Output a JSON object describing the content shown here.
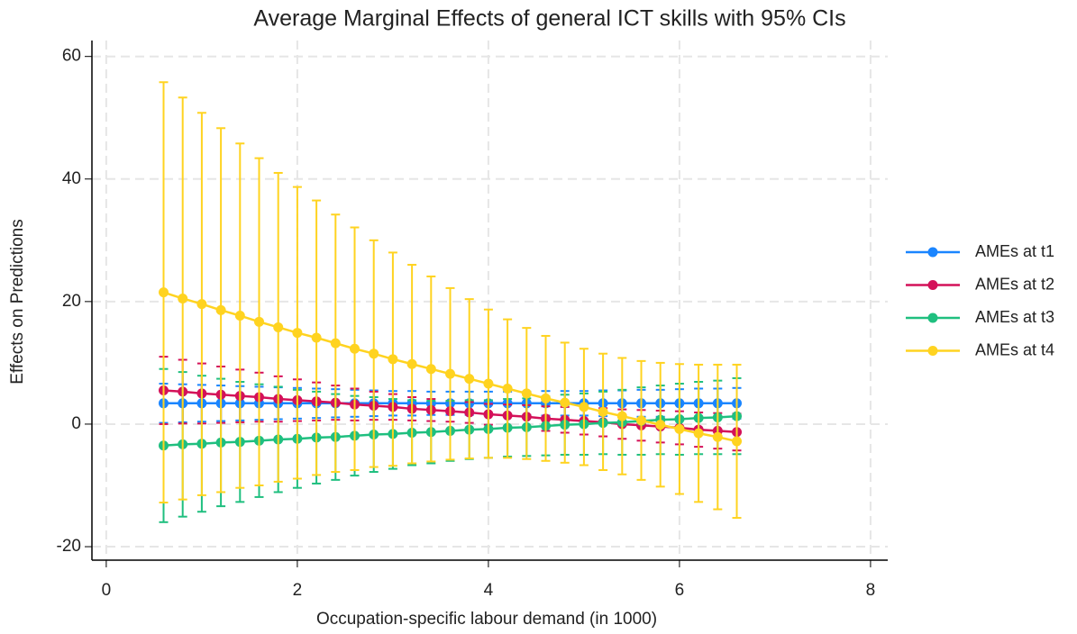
{
  "chart_data": {
    "type": "line",
    "title": "Average Marginal Effects of general ICT skills with 95% CIs",
    "x_label": "Occupation-specific labour demand (in 1000)",
    "y_label": "Effects on Predictions",
    "x": [
      0.6,
      0.8,
      1.0,
      1.2,
      1.4,
      1.6,
      1.8,
      2.0,
      2.2,
      2.4,
      2.6,
      2.8,
      3.0,
      3.2,
      3.4,
      3.6,
      3.8,
      4.0,
      4.2,
      4.4,
      4.6,
      4.8,
      5.0,
      5.2,
      5.4,
      5.6,
      5.8,
      6.0,
      6.2,
      6.4,
      6.6
    ],
    "series": [
      {
        "name": "AMEs at t1",
        "color": "#1a85ff",
        "values": [
          3.4,
          3.4,
          3.4,
          3.4,
          3.4,
          3.4,
          3.4,
          3.4,
          3.4,
          3.4,
          3.4,
          3.4,
          3.4,
          3.4,
          3.4,
          3.4,
          3.4,
          3.4,
          3.4,
          3.4,
          3.4,
          3.4,
          3.4,
          3.4,
          3.4,
          3.4,
          3.4,
          3.4,
          3.4,
          3.4,
          3.4
        ],
        "errors": [
          3.2,
          3.1,
          3.0,
          2.9,
          2.8,
          2.7,
          2.6,
          2.5,
          2.4,
          2.3,
          2.2,
          2.1,
          2.0,
          2.0,
          1.9,
          1.9,
          1.9,
          1.9,
          1.9,
          1.9,
          2.0,
          2.0,
          2.0,
          2.1,
          2.1,
          2.2,
          2.2,
          2.3,
          2.4,
          2.4,
          2.5
        ]
      },
      {
        "name": "AMEs at t2",
        "color": "#d41159",
        "values": [
          5.5,
          5.3,
          5.0,
          4.8,
          4.6,
          4.4,
          4.1,
          3.9,
          3.7,
          3.5,
          3.2,
          3.0,
          2.8,
          2.5,
          2.3,
          2.1,
          1.9,
          1.6,
          1.4,
          1.2,
          0.9,
          0.7,
          0.5,
          0.3,
          0.0,
          -0.2,
          -0.4,
          -0.6,
          -0.9,
          -1.1,
          -1.3
        ],
        "errors": [
          5.5,
          5.2,
          4.9,
          4.6,
          4.3,
          4.0,
          3.7,
          3.4,
          3.1,
          2.8,
          2.6,
          2.3,
          2.1,
          1.9,
          1.8,
          1.7,
          1.7,
          1.7,
          1.8,
          1.9,
          2.0,
          2.1,
          2.2,
          2.3,
          2.4,
          2.5,
          2.6,
          2.7,
          2.8,
          2.9,
          3.0
        ]
      },
      {
        "name": "AMEs at t3",
        "color": "#1fbf7f",
        "values": [
          -3.5,
          -3.3,
          -3.2,
          -3.0,
          -2.9,
          -2.7,
          -2.5,
          -2.4,
          -2.2,
          -2.1,
          -1.9,
          -1.7,
          -1.6,
          -1.4,
          -1.3,
          -1.1,
          -0.9,
          -0.8,
          -0.6,
          -0.5,
          -0.3,
          -0.1,
          0.0,
          0.2,
          0.3,
          0.5,
          0.7,
          0.8,
          1.0,
          1.1,
          1.3
        ],
        "errors": [
          12.5,
          11.8,
          11.1,
          10.4,
          9.8,
          9.2,
          8.6,
          8.0,
          7.5,
          7.0,
          6.5,
          6.1,
          5.7,
          5.3,
          5.1,
          4.9,
          4.8,
          4.7,
          4.7,
          4.7,
          4.8,
          4.9,
          5.0,
          5.1,
          5.3,
          5.5,
          5.6,
          5.8,
          5.9,
          6.0,
          6.2
        ]
      },
      {
        "name": "AMEs at t4",
        "color": "#ffd320",
        "values": [
          21.5,
          20.5,
          19.6,
          18.6,
          17.7,
          16.7,
          15.8,
          14.9,
          14.1,
          13.2,
          12.3,
          11.5,
          10.6,
          9.8,
          9.0,
          8.2,
          7.4,
          6.6,
          5.8,
          5.0,
          4.2,
          3.5,
          2.8,
          2.0,
          1.3,
          0.6,
          -0.1,
          -0.8,
          -1.5,
          -2.1,
          -2.8
        ],
        "errors": [
          34.3,
          32.8,
          31.2,
          29.7,
          28.1,
          26.7,
          25.2,
          23.8,
          22.4,
          21.0,
          19.8,
          18.5,
          17.4,
          16.2,
          15.1,
          14.0,
          13.0,
          12.1,
          11.3,
          10.7,
          10.2,
          9.8,
          9.5,
          9.5,
          9.5,
          9.7,
          10.1,
          10.6,
          11.2,
          11.8,
          12.5
        ]
      }
    ],
    "xlim": [
      -0.15,
      8.18
    ],
    "ylim": [
      -22.2,
      62.6
    ],
    "xticks": [
      0,
      2,
      4,
      6,
      8
    ],
    "yticks": [
      -20,
      0,
      20,
      40,
      60
    ],
    "grid": true,
    "legend": "right"
  }
}
